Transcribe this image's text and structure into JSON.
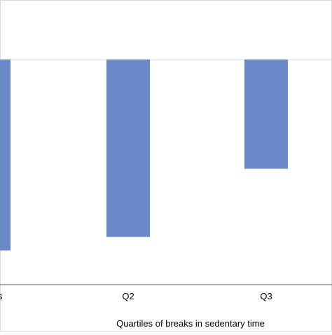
{
  "chart_data": {
    "type": "bar",
    "categories": [
      "breaks",
      "Q2",
      "Q3"
    ],
    "values": [
      -0.28,
      -0.26,
      -0.16
    ],
    "ylim": [
      -0.33,
      0.07
    ],
    "xlabel": "Quartiles of breaks in sedentary time",
    "ylabel": "",
    "grid": false,
    "legend": "none",
    "colors": {
      "bar": "#6a89c9",
      "baseline": "#d9d9d9",
      "axis": "#595959",
      "border": "#d9d9d9",
      "text": "#000000"
    }
  }
}
